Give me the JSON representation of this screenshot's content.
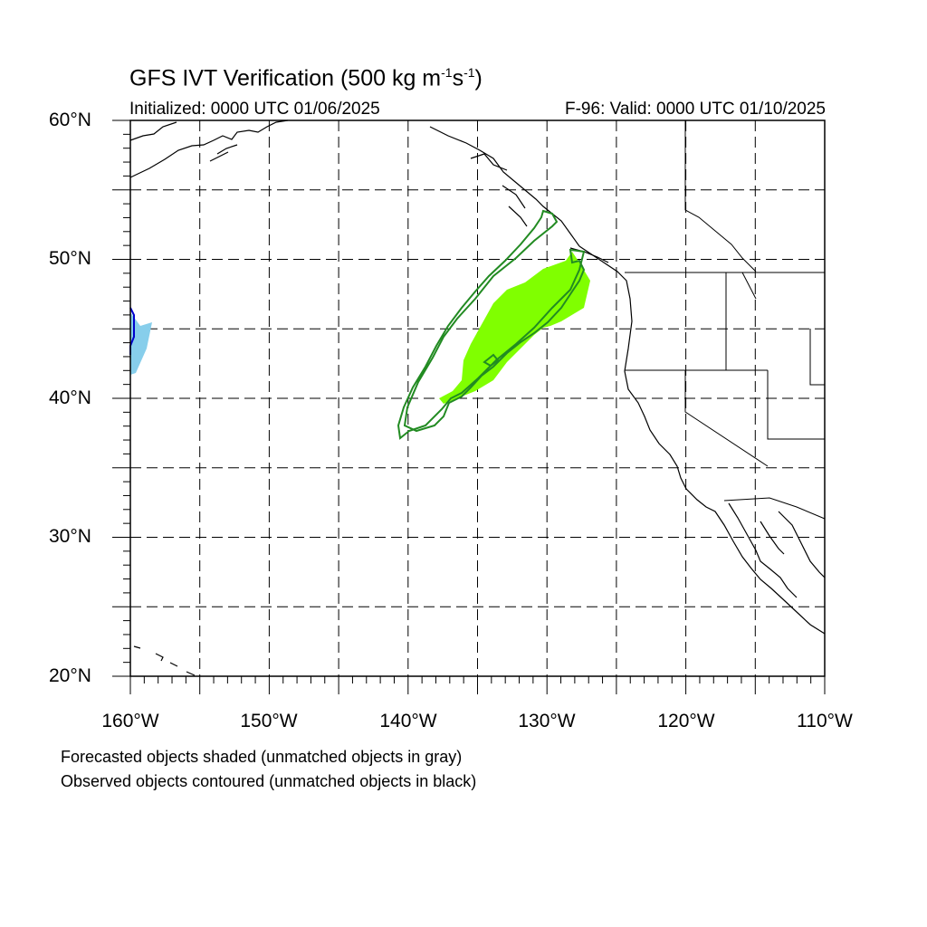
{
  "header": {
    "title": "GFS IVT Verification (500 kg m",
    "title_exp1": "-1",
    "title_mid": "s",
    "title_exp2": "-1",
    "title_end": ")",
    "initialized": "Initialized: 0000 UTC 01/06/2025",
    "valid": "F-96: Valid: 0000 UTC 01/10/2025"
  },
  "axes": {
    "lat_labels": [
      "60°N",
      "50°N",
      "40°N",
      "30°N",
      "20°N"
    ],
    "lon_labels": [
      "160°W",
      "150°W",
      "140°W",
      "130°W",
      "120°W",
      "110°W"
    ]
  },
  "legend": {
    "line1": "Forecasted objects shaded (unmatched objects in gray)",
    "line2": "Observed objects contoured (unmatched objects in black)"
  },
  "colors": {
    "forecast_main": "#80ff00",
    "forecast_edge": "#87ceeb",
    "observed_main": "#228b22",
    "observed_edge": "#0000cd"
  },
  "map_data": {
    "lon_range": [
      -160,
      -110
    ],
    "lat_range": [
      20,
      60
    ],
    "grid_lon_step": 5,
    "grid_lat_step": 5
  }
}
